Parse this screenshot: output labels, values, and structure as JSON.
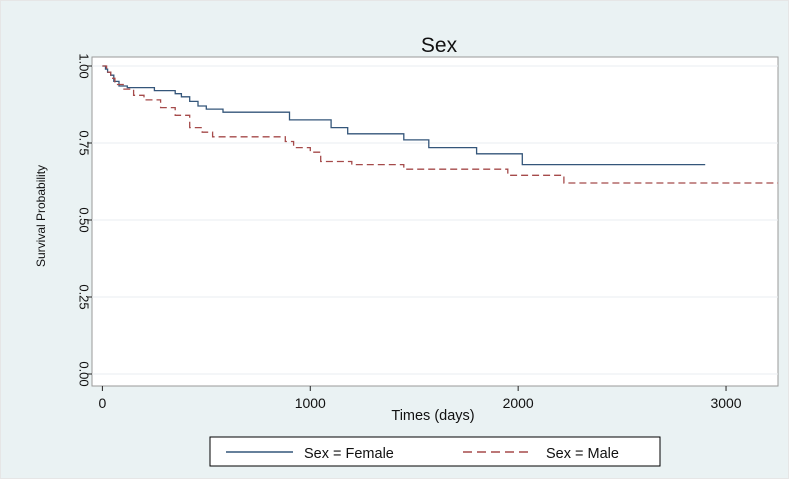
{
  "chart_data": {
    "type": "line",
    "step": true,
    "title": "Sex",
    "xlabel": "Times (days)",
    "ylabel": "Survival Probability",
    "xlim": [
      -50,
      3250
    ],
    "ylim": [
      0,
      1
    ],
    "xticks": [
      0,
      1000,
      2000,
      3000
    ],
    "xtick_labels": [
      "0",
      "1000",
      "2000",
      "3000"
    ],
    "yticks": [
      0,
      0.25,
      0.5,
      0.75,
      1
    ],
    "ytick_labels": [
      "0.00",
      "0.25",
      "0.50",
      "0.75",
      "1.00"
    ],
    "grid": true,
    "legend": "bottom",
    "series": [
      {
        "name": "Sex = Female",
        "color": "#34567a",
        "dash": "solid",
        "x": [
          0,
          15,
          25,
          40,
          55,
          80,
          120,
          250,
          350,
          380,
          420,
          460,
          500,
          580,
          900,
          1100,
          1180,
          1450,
          1570,
          1800,
          2020,
          2900
        ],
        "y": [
          1.0,
          0.99,
          0.98,
          0.97,
          0.95,
          0.935,
          0.93,
          0.92,
          0.91,
          0.9,
          0.885,
          0.87,
          0.86,
          0.85,
          0.825,
          0.8,
          0.78,
          0.76,
          0.735,
          0.715,
          0.68,
          0.68
        ]
      },
      {
        "name": "Sex = Male",
        "color": "#a54a4a",
        "dash": "dashed",
        "x": [
          0,
          20,
          40,
          60,
          100,
          150,
          200,
          280,
          350,
          420,
          480,
          530,
          880,
          920,
          1000,
          1050,
          1200,
          1450,
          1950,
          2220,
          3250
        ],
        "y": [
          1.0,
          0.98,
          0.96,
          0.94,
          0.925,
          0.905,
          0.89,
          0.865,
          0.84,
          0.8,
          0.785,
          0.77,
          0.755,
          0.735,
          0.72,
          0.69,
          0.68,
          0.665,
          0.645,
          0.62,
          0.62
        ]
      }
    ]
  }
}
